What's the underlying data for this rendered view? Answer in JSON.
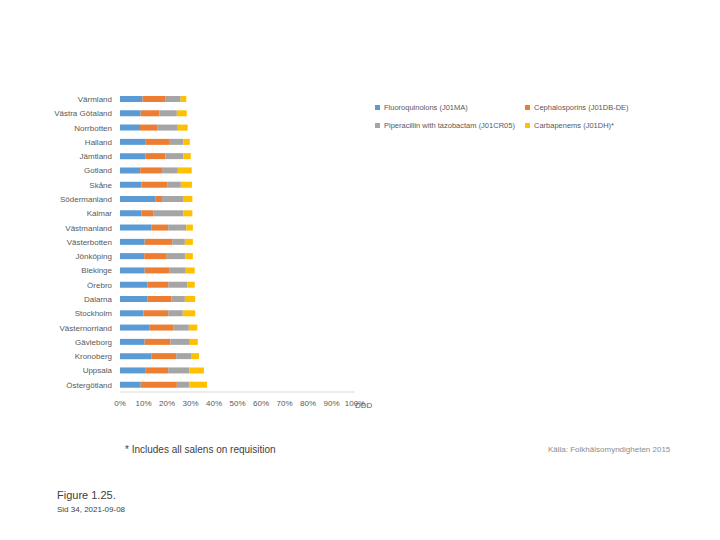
{
  "chart_data": {
    "type": "bar",
    "orientation": "horizontal",
    "stacked": true,
    "grid": false,
    "legend": "upper right",
    "x_label": "DDD",
    "categories": [
      "Värmland",
      "Västra Götaland",
      "Norrbotten",
      "Halland",
      "Jämtland",
      "Gotland",
      "Skåne",
      "Södermanland",
      "Kalmar",
      "Västmanland",
      "Västerbotten",
      "Jönköping",
      "Blekinge",
      "Örebro",
      "Dalarna",
      "Stockholm",
      "Västernorrland",
      "Gävleborg",
      "Kronoberg",
      "Uppsala",
      "Östergötland"
    ],
    "series": [
      {
        "name": "Fluoroquinolons (J01MA)",
        "color": "#5b9bd5",
        "values": [
          9.6,
          8.8,
          8.5,
          10.7,
          10.9,
          8.6,
          9.2,
          15.0,
          9.2,
          13.3,
          10.5,
          10.3,
          10.5,
          11.7,
          11.8,
          10.0,
          12.4,
          10.5,
          13.3,
          10.7,
          8.8
        ]
      },
      {
        "name": "Cephalosporins (J01DB-DE)",
        "color": "#ed7d31",
        "values": [
          9.6,
          7.9,
          7.3,
          10.5,
          8.5,
          9.3,
          11.1,
          2.9,
          4.9,
          7.2,
          11.7,
          9.6,
          10.4,
          8.8,
          10.0,
          10.5,
          10.2,
          10.9,
          10.6,
          9.8,
          15.4
        ]
      },
      {
        "name": "Piperacillin with tazobactam (J01CR05)",
        "color": "#a5a5a5",
        "values": [
          6.6,
          7.5,
          8.8,
          5.7,
          7.5,
          6.7,
          5.6,
          9.2,
          12.8,
          7.7,
          5.4,
          7.9,
          7.1,
          8.1,
          5.8,
          6.2,
          6.7,
          8.3,
          6.6,
          9.0,
          5.3
        ]
      },
      {
        "name": "Carbapenems (J01DH)*",
        "color": "#ffc000",
        "values": [
          2.4,
          4.2,
          4.2,
          2.8,
          3.2,
          5.9,
          4.7,
          3.7,
          3.9,
          2.8,
          3.4,
          3.2,
          3.8,
          3.2,
          4.4,
          5.3,
          3.6,
          3.4,
          3.1,
          6.2,
          7.5
        ]
      }
    ],
    "xlim": [
      0,
      100
    ],
    "xticks": [
      {
        "value": 0,
        "label": "0%"
      },
      {
        "value": 10,
        "label": "10%"
      },
      {
        "value": 20,
        "label": "20%"
      },
      {
        "value": 30,
        "label": "30%"
      },
      {
        "value": 40,
        "label": "40%"
      },
      {
        "value": 50,
        "label": "50%"
      },
      {
        "value": 60,
        "label": "60%"
      },
      {
        "value": 70,
        "label": "70%"
      },
      {
        "value": 80,
        "label": "80%"
      },
      {
        "value": 90,
        "label": "90%"
      },
      {
        "value": 100,
        "label": "100%"
      }
    ],
    "annotations": [
      "* Includes all salens on requisition",
      "Källa: Folkhälsomyndigheten 2015",
      "Figure 1.25.",
      "Sid 34, 2021-09-08"
    ]
  }
}
